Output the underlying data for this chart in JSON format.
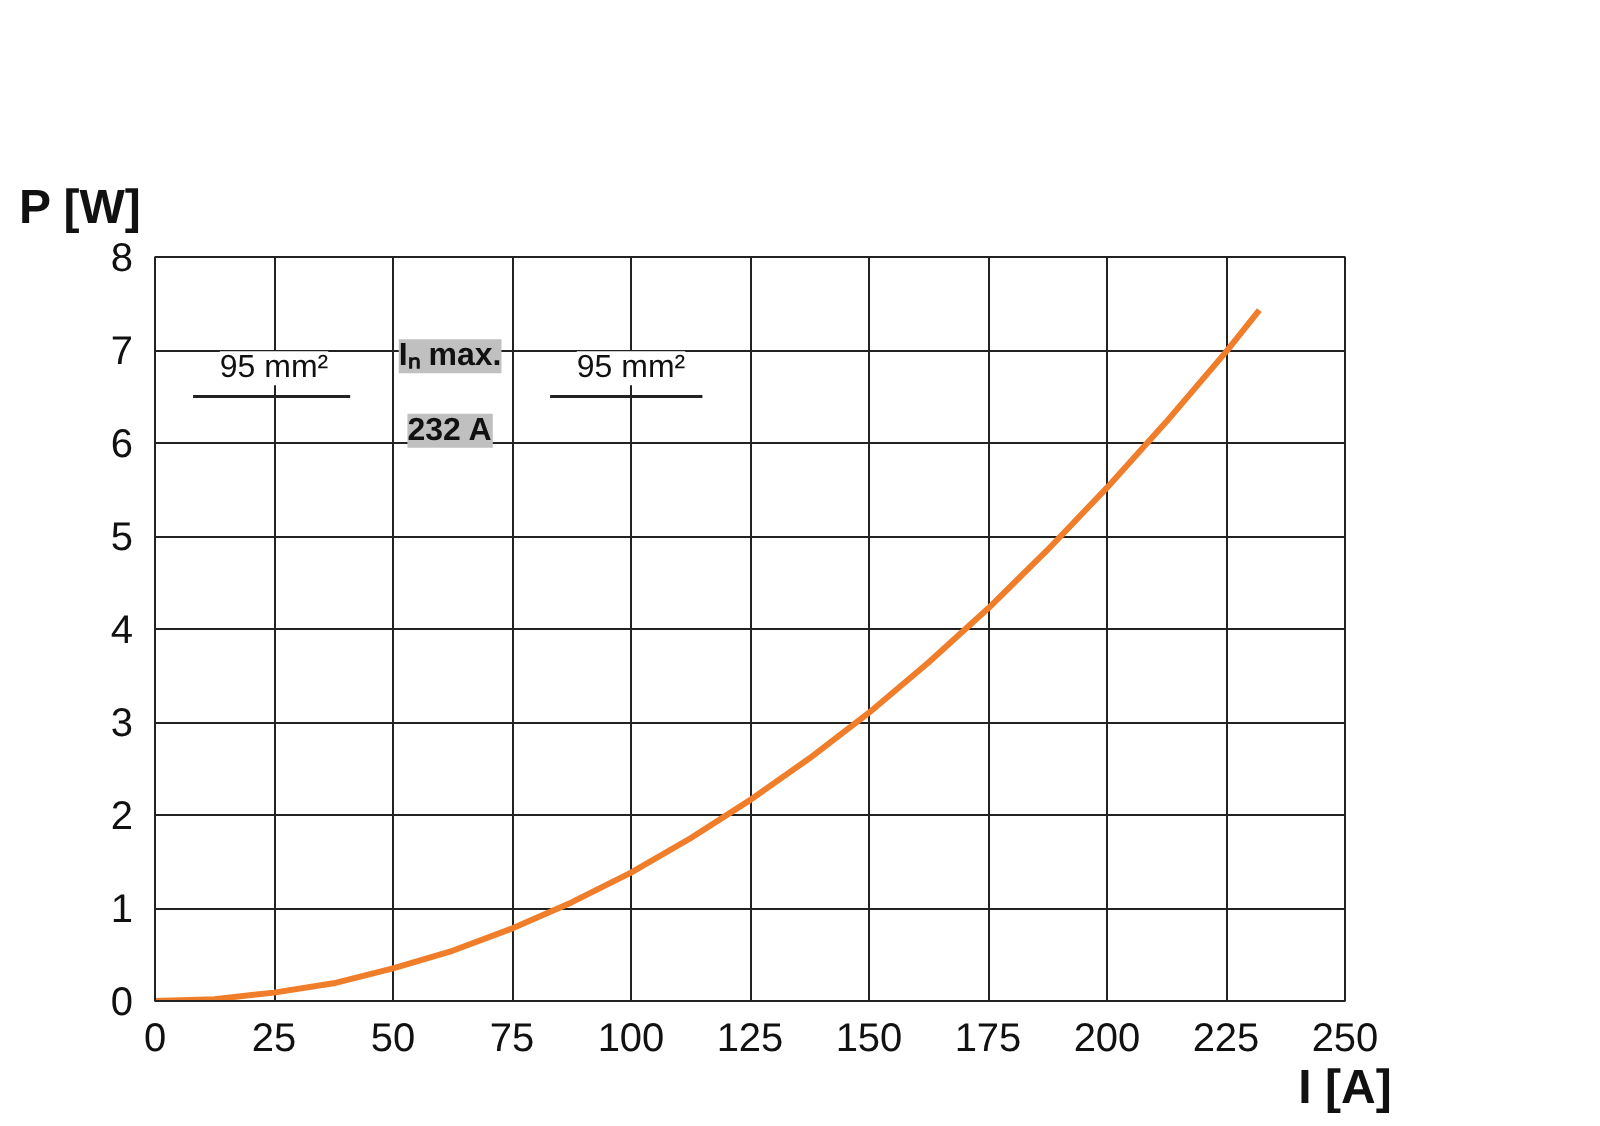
{
  "chart_data": {
    "type": "line",
    "xlabel": "I [A]",
    "ylabel": "P [W]",
    "x": [
      0,
      12.5,
      25,
      37.5,
      50,
      62.5,
      75,
      87.5,
      100,
      112.5,
      125,
      137.5,
      150,
      162.5,
      175,
      187.5,
      200,
      212.5,
      225,
      232
    ],
    "series": [
      {
        "color": "#f07d2a",
        "values": [
          0,
          0.02,
          0.09,
          0.19,
          0.35,
          0.54,
          0.78,
          1.06,
          1.38,
          1.75,
          2.16,
          2.61,
          3.1,
          3.64,
          4.22,
          4.85,
          5.52,
          6.23,
          6.98,
          7.43
        ]
      }
    ],
    "xlim": [
      0,
      250
    ],
    "ylim": [
      0,
      8
    ],
    "xticks": [
      0,
      25,
      50,
      75,
      100,
      125,
      150,
      175,
      200,
      225,
      250
    ],
    "yticks": [
      0,
      1,
      2,
      3,
      4,
      5,
      6,
      7,
      8
    ],
    "grid": true,
    "marker": "none",
    "line_style": "solid",
    "annotations": [
      "Iₙ max.",
      "232 A",
      "95 mm²",
      "95 mm²"
    ]
  }
}
